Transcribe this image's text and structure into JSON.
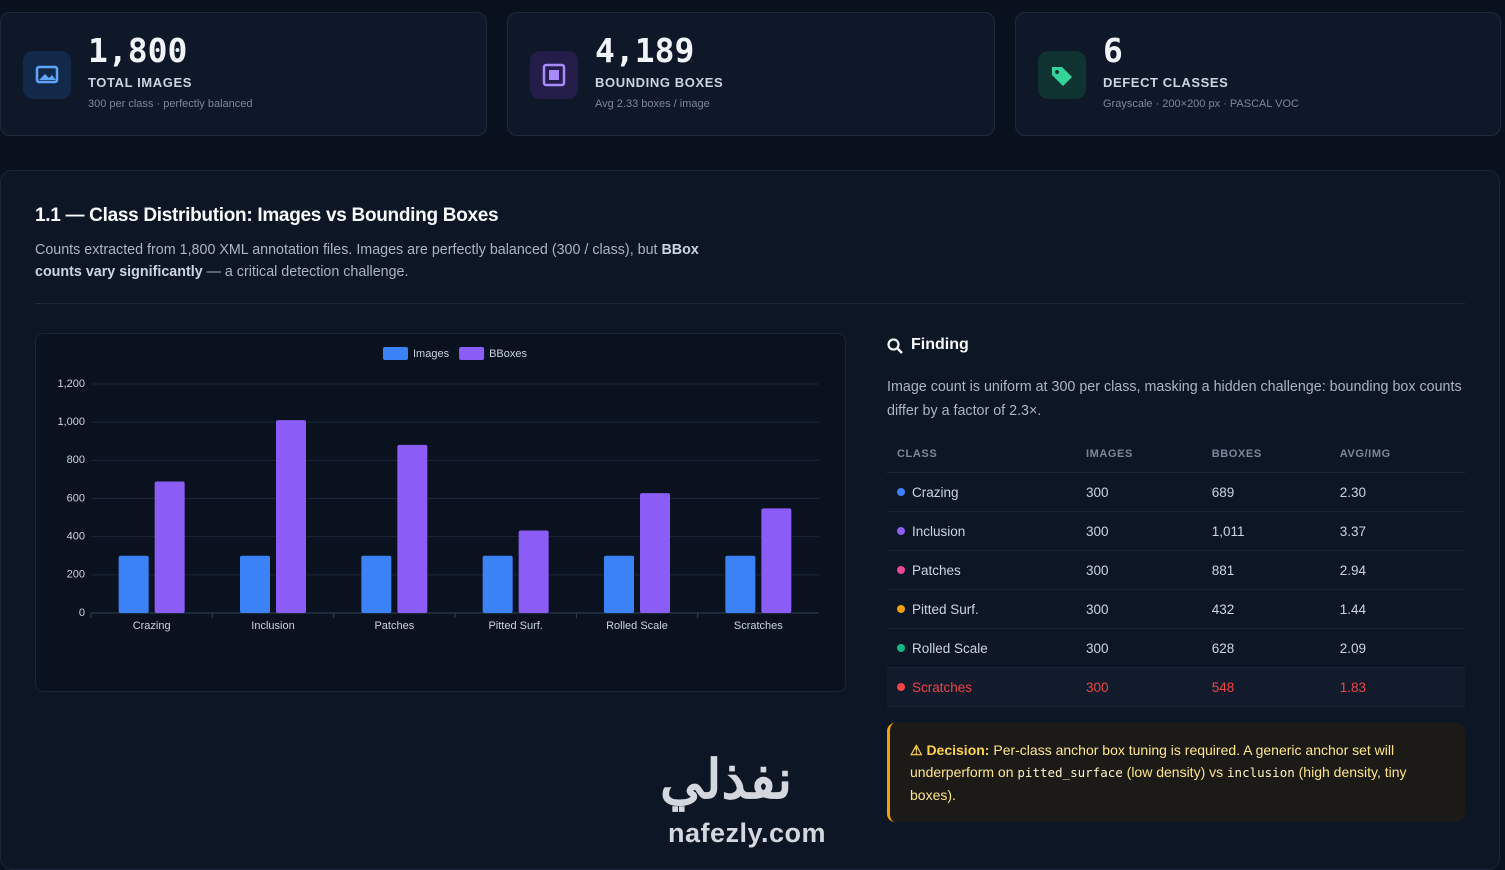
{
  "cards": [
    {
      "value": "1,800",
      "label": "TOTAL IMAGES",
      "sub": "300 per class · perfectly balanced"
    },
    {
      "value": "4,189",
      "label": "BOUNDING BOXES",
      "sub": "Avg 2.33 boxes / image"
    },
    {
      "value": "6",
      "label": "DEFECT CLASSES",
      "sub": "Grayscale · 200×200 px · PASCAL VOC"
    }
  ],
  "section": {
    "title": "1.1 — Class Distribution: Images vs Bounding Boxes",
    "description": [
      "Counts extracted from 1,800 XML annotation files. Images are perfectly balanced (300 / class), but ",
      "BBox counts vary significantly",
      " — a critical detection challenge."
    ]
  },
  "chart_data": {
    "type": "bar",
    "legend": "top",
    "grid": true,
    "categories": [
      "Crazing",
      "Inclusion",
      "Patches",
      "Pitted Surf.",
      "Rolled Scale",
      "Scratches"
    ],
    "series": [
      {
        "name": "Images",
        "color": "#3b82f6",
        "values": [
          300,
          300,
          300,
          300,
          300,
          300
        ]
      },
      {
        "name": "BBoxes",
        "color": "#8b5cf6",
        "values": [
          689,
          1011,
          881,
          432,
          628,
          548
        ]
      }
    ],
    "ylim": [
      0,
      1200
    ],
    "yticks": [
      0,
      200,
      400,
      600,
      800,
      {
        "value": 1000,
        "label": "1,000"
      },
      {
        "value": 1200,
        "label": "1,200"
      }
    ]
  },
  "finding": {
    "title": "Finding",
    "text": "Image count is uniform at 300 per class, masking a hidden challenge: bounding box counts differ by a factor of 2.3×.",
    "table": {
      "columns": [
        "CLASS",
        "IMAGES",
        "BBOXES",
        "AVG/IMG"
      ],
      "rows": [
        [
          "Crazing",
          "300",
          "689",
          "2.30"
        ],
        [
          "Inclusion",
          "300",
          "1,011",
          "3.37"
        ],
        [
          "Patches",
          "300",
          "881",
          "2.94"
        ],
        [
          "Pitted Surf.",
          "300",
          "432",
          "1.44"
        ],
        [
          "Rolled Scale",
          "300",
          "628",
          "2.09"
        ],
        [
          "Scratches",
          "300",
          "548",
          "1.83"
        ]
      ],
      "colors": [
        "#3b82f6",
        "#8b5cf6",
        "#ec4899",
        "#f59e0b",
        "#10b981",
        "#ef4444"
      ]
    }
  },
  "decision": {
    "label": "⚠ Decision:",
    "parts": [
      " Per-class anchor box tuning is required. A generic anchor set will underperform on ",
      "pitted_surface",
      " (low density) vs ",
      "inclusion",
      " (high density, tiny boxes)."
    ]
  },
  "watermark": {
    "arabic": "نفذلي",
    "latin": "nafezly.com"
  }
}
